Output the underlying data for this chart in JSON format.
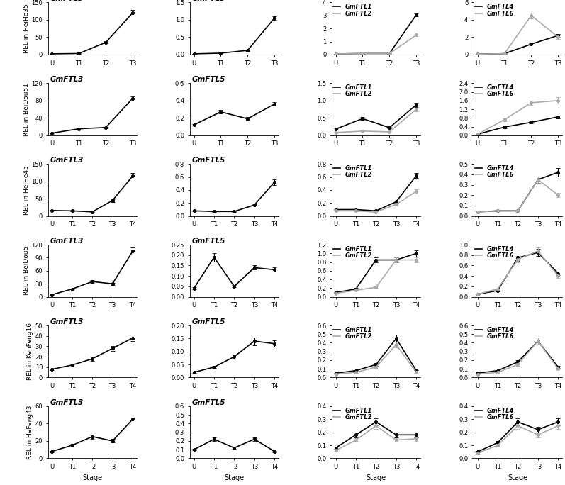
{
  "rows": [
    {
      "cultivar": "HeiHe35",
      "ylabel": "REL in HeiHe35",
      "stages": [
        "U",
        "T1",
        "T2",
        "T3"
      ],
      "FTL3": {
        "y": [
          2,
          3,
          35,
          120
        ],
        "yerr": [
          0.3,
          0.3,
          3,
          8
        ]
      },
      "FTL5": {
        "y": [
          0.02,
          0.04,
          0.12,
          1.05
        ],
        "yerr": [
          0.005,
          0.005,
          0.01,
          0.06
        ]
      },
      "FTL1": {
        "y": [
          0.05,
          0.08,
          0.08,
          3.05
        ],
        "yerr": [
          0.01,
          0.01,
          0.01,
          0.12
        ]
      },
      "FTL2": {
        "y": [
          0.05,
          0.08,
          0.08,
          1.5
        ],
        "yerr": [
          0.01,
          0.01,
          0.01,
          0.1
        ]
      },
      "FTL4": {
        "y": [
          0.05,
          0.1,
          1.2,
          2.2
        ],
        "yerr": [
          0.01,
          0.05,
          0.1,
          0.15
        ]
      },
      "FTL6": {
        "y": [
          0.05,
          0.1,
          4.5,
          2.0
        ],
        "yerr": [
          0.01,
          0.05,
          0.35,
          0.2
        ]
      },
      "ylim3": [
        0,
        150
      ],
      "yticks3": [
        0,
        50,
        100,
        150
      ],
      "ylim5": [
        0,
        1.5
      ],
      "yticks5": [
        0,
        0.5,
        1.0,
        1.5
      ],
      "ylim12": [
        0,
        4
      ],
      "yticks12": [
        0,
        1,
        2,
        3,
        4
      ],
      "ylim46": [
        0,
        6
      ],
      "yticks46": [
        0,
        2,
        4,
        6
      ]
    },
    {
      "cultivar": "BeiDou51",
      "ylabel": "REL in BeiDou51",
      "stages": [
        "U",
        "T1",
        "T2",
        "T3"
      ],
      "FTL3": {
        "y": [
          5,
          15,
          18,
          85
        ],
        "yerr": [
          0.5,
          1.5,
          2,
          5
        ]
      },
      "FTL5": {
        "y": [
          0.12,
          0.27,
          0.19,
          0.36
        ],
        "yerr": [
          0.01,
          0.02,
          0.02,
          0.02
        ]
      },
      "FTL1": {
        "y": [
          0.18,
          0.48,
          0.22,
          0.88
        ],
        "yerr": [
          0.02,
          0.04,
          0.02,
          0.06
        ]
      },
      "FTL2": {
        "y": [
          0.08,
          0.12,
          0.1,
          0.75
        ],
        "yerr": [
          0.01,
          0.01,
          0.01,
          0.05
        ]
      },
      "FTL4": {
        "y": [
          0.05,
          0.38,
          0.6,
          0.85
        ],
        "yerr": [
          0.01,
          0.05,
          0.05,
          0.06
        ]
      },
      "FTL6": {
        "y": [
          0.05,
          0.72,
          1.5,
          1.6
        ],
        "yerr": [
          0.01,
          0.06,
          0.1,
          0.15
        ]
      },
      "ylim3": [
        0,
        120
      ],
      "yticks3": [
        0,
        40,
        80,
        120
      ],
      "ylim5": [
        0,
        0.6
      ],
      "yticks5": [
        0,
        0.2,
        0.4,
        0.6
      ],
      "ylim12": [
        0,
        1.5
      ],
      "yticks12": [
        0,
        0.5,
        1.0,
        1.5
      ],
      "ylim46": [
        0,
        2.4
      ],
      "yticks46": [
        0,
        0.4,
        0.8,
        1.2,
        1.6,
        2.0,
        2.4
      ]
    },
    {
      "cultivar": "HeiHe45",
      "ylabel": "REL in HeiHe45",
      "stages": [
        "U",
        "T1",
        "T2",
        "T3",
        "T4"
      ],
      "FTL3": {
        "y": [
          16,
          15,
          12,
          45,
          115
        ],
        "yerr": [
          1,
          1,
          1,
          4,
          8
        ]
      },
      "FTL5": {
        "y": [
          0.08,
          0.07,
          0.07,
          0.17,
          0.52
        ],
        "yerr": [
          0.005,
          0.005,
          0.005,
          0.01,
          0.04
        ]
      },
      "FTL1": {
        "y": [
          0.1,
          0.1,
          0.08,
          0.22,
          0.62
        ],
        "yerr": [
          0.01,
          0.01,
          0.01,
          0.02,
          0.04
        ]
      },
      "FTL2": {
        "y": [
          0.08,
          0.08,
          0.06,
          0.18,
          0.38
        ],
        "yerr": [
          0.01,
          0.01,
          0.01,
          0.02,
          0.03
        ]
      },
      "FTL4": {
        "y": [
          0.04,
          0.05,
          0.05,
          0.35,
          0.42
        ],
        "yerr": [
          0.005,
          0.005,
          0.005,
          0.03,
          0.04
        ]
      },
      "FTL6": {
        "y": [
          0.04,
          0.05,
          0.05,
          0.35,
          0.2
        ],
        "yerr": [
          0.005,
          0.005,
          0.005,
          0.03,
          0.02
        ]
      },
      "ylim3": [
        0,
        150
      ],
      "yticks3": [
        0,
        50,
        100,
        150
      ],
      "ylim5": [
        0,
        0.8
      ],
      "yticks5": [
        0,
        0.2,
        0.4,
        0.6,
        0.8
      ],
      "ylim12": [
        0,
        0.8
      ],
      "yticks12": [
        0,
        0.2,
        0.4,
        0.6,
        0.8
      ],
      "ylim46": [
        0,
        0.5
      ],
      "yticks46": [
        0,
        0.1,
        0.2,
        0.3,
        0.4,
        0.5
      ]
    },
    {
      "cultivar": "BeiDou5",
      "ylabel": "REL in BeiDou5",
      "stages": [
        "U",
        "T1",
        "T2",
        "T3",
        "T4"
      ],
      "FTL3": {
        "y": [
          5,
          18,
          35,
          30,
          105
        ],
        "yerr": [
          0.5,
          1.5,
          3,
          2.5,
          8
        ]
      },
      "FTL5": {
        "y": [
          0.04,
          0.19,
          0.05,
          0.14,
          0.13
        ],
        "yerr": [
          0.005,
          0.02,
          0.005,
          0.01,
          0.01
        ]
      },
      "FTL1": {
        "y": [
          0.1,
          0.18,
          0.85,
          0.85,
          1.0
        ],
        "yerr": [
          0.01,
          0.02,
          0.06,
          0.06,
          0.07
        ]
      },
      "FTL2": {
        "y": [
          0.08,
          0.15,
          0.22,
          0.85,
          0.85
        ],
        "yerr": [
          0.01,
          0.01,
          0.02,
          0.06,
          0.06
        ]
      },
      "FTL4": {
        "y": [
          0.05,
          0.12,
          0.75,
          0.85,
          0.45
        ],
        "yerr": [
          0.005,
          0.01,
          0.06,
          0.07,
          0.04
        ]
      },
      "FTL6": {
        "y": [
          0.05,
          0.15,
          0.72,
          0.88,
          0.4
        ],
        "yerr": [
          0.005,
          0.01,
          0.06,
          0.07,
          0.04
        ]
      },
      "ylim3": [
        0,
        120
      ],
      "yticks3": [
        0,
        30,
        60,
        90,
        120
      ],
      "ylim5": [
        0,
        0.25
      ],
      "yticks5": [
        0,
        0.05,
        0.1,
        0.15,
        0.2,
        0.25
      ],
      "ylim12": [
        0,
        1.2
      ],
      "yticks12": [
        0,
        0.2,
        0.4,
        0.6,
        0.8,
        1.0,
        1.2
      ],
      "ylim46": [
        0,
        1.0
      ],
      "yticks46": [
        0,
        0.2,
        0.4,
        0.6,
        0.8,
        1.0
      ]
    },
    {
      "cultivar": "KenFeng16",
      "ylabel": "REL in KenFeng16",
      "stages": [
        "U",
        "T1",
        "T2",
        "T3",
        "T4"
      ],
      "FTL3": {
        "y": [
          8,
          12,
          18,
          28,
          38
        ],
        "yerr": [
          0.8,
          1.2,
          1.8,
          2.5,
          3
        ]
      },
      "FTL5": {
        "y": [
          0.02,
          0.04,
          0.08,
          0.14,
          0.13
        ],
        "yerr": [
          0.002,
          0.004,
          0.008,
          0.015,
          0.012
        ]
      },
      "FTL1": {
        "y": [
          0.05,
          0.08,
          0.15,
          0.45,
          0.08
        ],
        "yerr": [
          0.005,
          0.008,
          0.015,
          0.04,
          0.008
        ]
      },
      "FTL2": {
        "y": [
          0.04,
          0.06,
          0.12,
          0.38,
          0.06
        ],
        "yerr": [
          0.004,
          0.006,
          0.012,
          0.035,
          0.006
        ]
      },
      "FTL4": {
        "y": [
          0.05,
          0.08,
          0.18,
          0.42,
          0.12
        ],
        "yerr": [
          0.005,
          0.008,
          0.018,
          0.04,
          0.012
        ]
      },
      "FTL6": {
        "y": [
          0.04,
          0.06,
          0.15,
          0.42,
          0.1
        ],
        "yerr": [
          0.004,
          0.006,
          0.015,
          0.04,
          0.01
        ]
      },
      "ylim3": [
        0,
        50
      ],
      "yticks3": [
        0,
        10,
        20,
        30,
        40,
        50
      ],
      "ylim5": [
        0,
        0.2
      ],
      "yticks5": [
        0,
        0.05,
        0.1,
        0.15,
        0.2
      ],
      "ylim12": [
        0,
        0.6
      ],
      "yticks12": [
        0,
        0.1,
        0.2,
        0.3,
        0.4,
        0.5,
        0.6
      ],
      "ylim46": [
        0,
        0.6
      ],
      "yticks46": [
        0,
        0.1,
        0.2,
        0.3,
        0.4,
        0.5,
        0.6
      ]
    },
    {
      "cultivar": "HeFeng43",
      "ylabel": "REL in HeFeng43",
      "stages": [
        "U",
        "T1",
        "T2",
        "T3",
        "T4"
      ],
      "FTL3": {
        "y": [
          8,
          15,
          25,
          20,
          45
        ],
        "yerr": [
          0.8,
          1.5,
          2.5,
          2.0,
          4
        ]
      },
      "FTL5": {
        "y": [
          0.1,
          0.22,
          0.12,
          0.22,
          0.08
        ],
        "yerr": [
          0.01,
          0.02,
          0.01,
          0.02,
          0.008
        ]
      },
      "FTL1": {
        "y": [
          0.08,
          0.18,
          0.28,
          0.18,
          0.18
        ],
        "yerr": [
          0.008,
          0.018,
          0.028,
          0.018,
          0.018
        ]
      },
      "FTL2": {
        "y": [
          0.06,
          0.14,
          0.25,
          0.14,
          0.15
        ],
        "yerr": [
          0.006,
          0.014,
          0.025,
          0.014,
          0.015
        ]
      },
      "FTL4": {
        "y": [
          0.05,
          0.12,
          0.28,
          0.22,
          0.28
        ],
        "yerr": [
          0.005,
          0.012,
          0.028,
          0.022,
          0.028
        ]
      },
      "FTL6": {
        "y": [
          0.04,
          0.1,
          0.25,
          0.18,
          0.25
        ],
        "yerr": [
          0.004,
          0.01,
          0.025,
          0.018,
          0.025
        ]
      },
      "ylim3": [
        0,
        60
      ],
      "yticks3": [
        0,
        20,
        40,
        60
      ],
      "ylim5": [
        0,
        0.6
      ],
      "yticks5": [
        0,
        0.1,
        0.2,
        0.3,
        0.4,
        0.5,
        0.6
      ],
      "ylim12": [
        0,
        0.4
      ],
      "yticks12": [
        0,
        0.1,
        0.2,
        0.3,
        0.4
      ],
      "ylim46": [
        0,
        0.4
      ],
      "yticks46": [
        0,
        0.1,
        0.2,
        0.3,
        0.4
      ]
    }
  ],
  "color_dark": "#000000",
  "color_light": "#aaaaaa",
  "xlabel": "Stage",
  "markersize": 3,
  "linewidth": 1.2,
  "capsize": 2,
  "elinewidth": 0.8,
  "fontsize_title": 7.5,
  "fontsize_tick": 6,
  "fontsize_label": 6.5,
  "fontsize_legend": 6
}
